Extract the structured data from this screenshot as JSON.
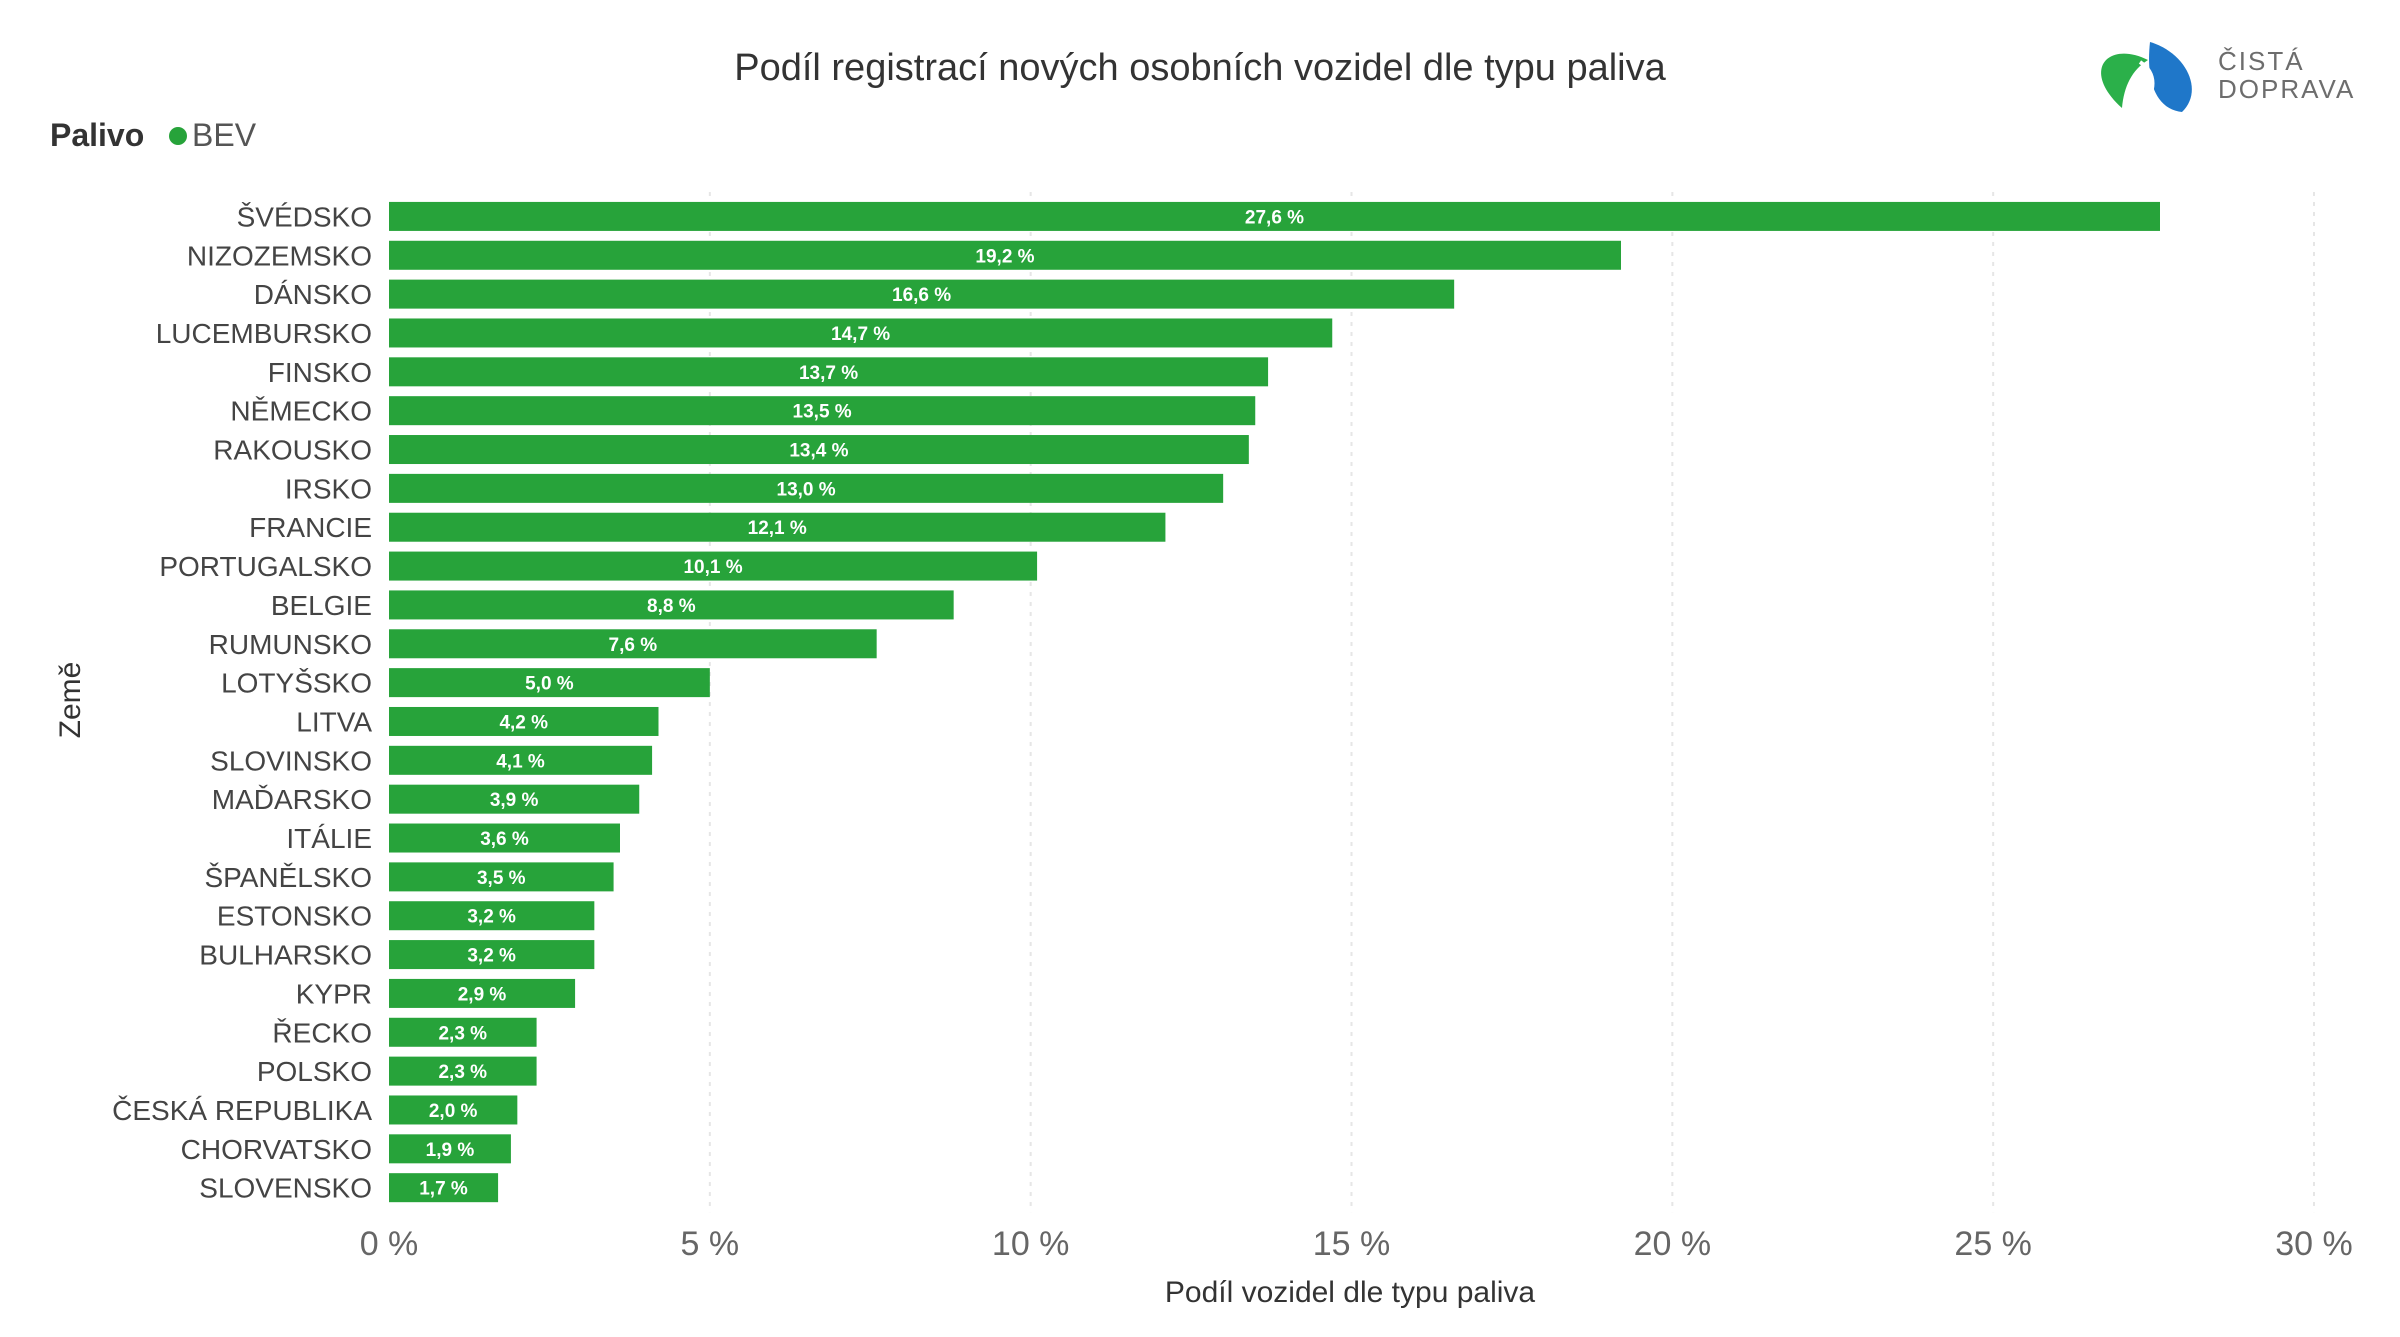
{
  "logo": {
    "line1": "ČISTÁ",
    "line2": "DOPRAVA",
    "green": "#2bb04a",
    "blue": "#1f77c9"
  },
  "chart_data": {
    "type": "bar",
    "orientation": "horizontal",
    "title": "Podíl registrací nových osobních vozidel dle typu paliva",
    "legend_title": "Palivo",
    "legend_position": "top-left",
    "series": [
      {
        "name": "BEV",
        "color": "#27a33a"
      }
    ],
    "xlabel": "Podíl vozidel dle typu paliva",
    "ylabel": "Země",
    "xlim": [
      0,
      30
    ],
    "xticks": [
      0,
      5,
      10,
      15,
      20,
      25,
      30
    ],
    "xtick_labels": [
      "0 %",
      "5 %",
      "10 %",
      "15 %",
      "20 %",
      "25 %",
      "30 %"
    ],
    "grid": "vertical dashed",
    "categories": [
      "ŠVÉDSKO",
      "NIZOZEMSKO",
      "DÁNSKO",
      "LUCEMBURSKO",
      "FINSKO",
      "NĚMECKO",
      "RAKOUSKO",
      "IRSKO",
      "FRANCIE",
      "PORTUGALSKO",
      "BELGIE",
      "RUMUNSKO",
      "LOTYŠSKO",
      "LITVA",
      "SLOVINSKO",
      "MAĎARSKO",
      "ITÁLIE",
      "ŠPANĚLSKO",
      "ESTONSKO",
      "BULHARSKO",
      "KYPR",
      "ŘECKO",
      "POLSKO",
      "ČESKÁ REPUBLIKA",
      "CHORVATSKO",
      "SLOVENSKO"
    ],
    "values": [
      27.6,
      19.2,
      16.6,
      14.7,
      13.7,
      13.5,
      13.4,
      13.0,
      12.1,
      10.1,
      8.8,
      7.6,
      5.0,
      4.2,
      4.1,
      3.9,
      3.6,
      3.5,
      3.2,
      3.2,
      2.9,
      2.3,
      2.3,
      2.0,
      1.9,
      1.7
    ],
    "data_labels": [
      "27,6 %",
      "19,2 %",
      "16,6 %",
      "14,7 %",
      "13,7 %",
      "13,5 %",
      "13,4 %",
      "13,0 %",
      "12,1 %",
      "10,1 %",
      "8,8 %",
      "7,6 %",
      "5,0 %",
      "4,2 %",
      "4,1 %",
      "3,9 %",
      "3,6 %",
      "3,5 %",
      "3,2 %",
      "3,2 %",
      "2,9 %",
      "2,3 %",
      "2,3 %",
      "2,0 %",
      "1,9 %",
      "1,7 %"
    ]
  }
}
